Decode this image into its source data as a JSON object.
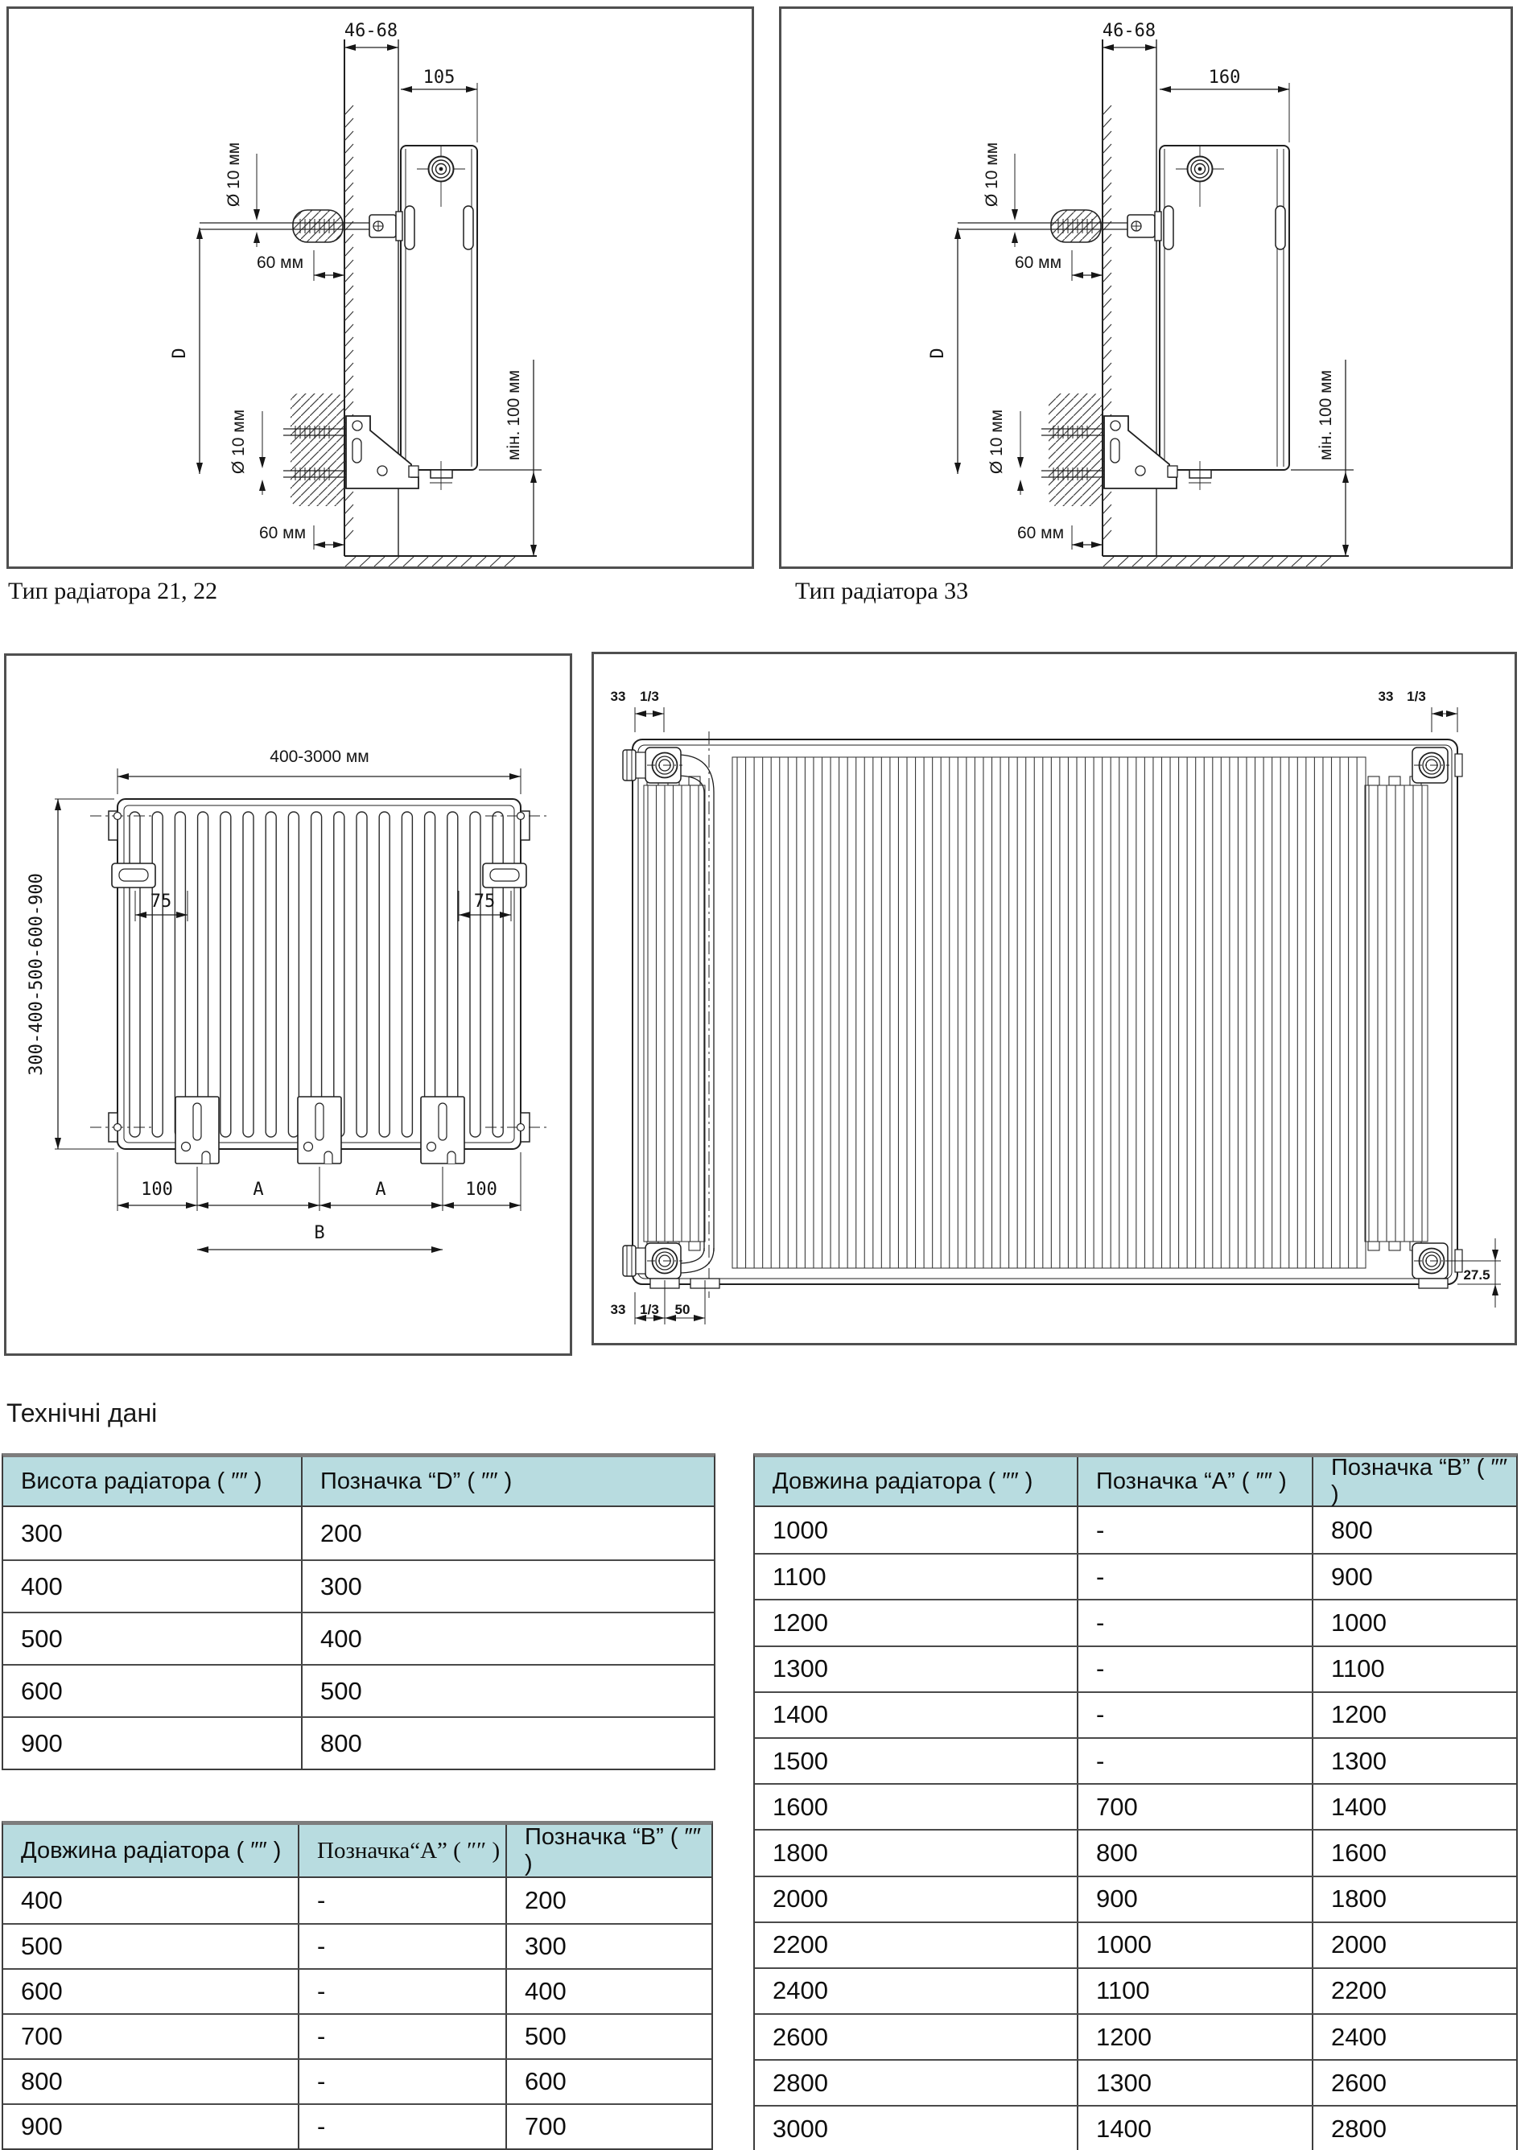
{
  "page": {
    "heading": "Технічні дані"
  },
  "diagrams": {
    "type2122": {
      "caption": "Тип радіатора 21, 22",
      "wall_gap": "46-68",
      "depth": "105",
      "hole_dia": "Ø 10 мм",
      "offset60": "60 мм",
      "height_ref": "D",
      "floor_min": "мін. 100 мм"
    },
    "type33": {
      "caption": "Тип радіатора 33",
      "wall_gap": "46-68",
      "depth": "160",
      "hole_dia": "Ø 10 мм",
      "offset60": "60 мм",
      "height_ref": "D",
      "floor_min": "мін. 100 мм"
    },
    "front": {
      "length_range": "400-3000 мм",
      "height_range": "300-400-500-600-900",
      "bracket_offset": "75",
      "edge_offset": "100",
      "dim_a": "A",
      "dim_b": "B"
    },
    "rear": {
      "corner_dim": "33",
      "thread": "1/3",
      "pipe_offset": "50",
      "bottom_offset": "27.5"
    }
  },
  "tables": {
    "height_d": {
      "headers": [
        "Висота радіатора ( ″″ )",
        "Позначка “D” ( ″″ )"
      ],
      "rows": [
        [
          "300",
          "200"
        ],
        [
          "400",
          "300"
        ],
        [
          "500",
          "400"
        ],
        [
          "600",
          "500"
        ],
        [
          "900",
          "800"
        ]
      ]
    },
    "length_ab_small": {
      "headers": [
        "Довжина радіатора ( ″″ )",
        "Позначка“А” ( ″″ )",
        "Позначка “В” ( ″″ )"
      ],
      "rows": [
        [
          "400",
          "-",
          "200"
        ],
        [
          "500",
          "-",
          "300"
        ],
        [
          "600",
          "-",
          "400"
        ],
        [
          "700",
          "-",
          "500"
        ],
        [
          "800",
          "-",
          "600"
        ],
        [
          "900",
          "-",
          "700"
        ]
      ]
    },
    "length_ab_large": {
      "headers": [
        "Довжина радіатора ( ″″ )",
        "Позначка “А” ( ″″ )",
        "Позначка “В” ( ″″ )"
      ],
      "rows": [
        [
          "1000",
          "-",
          "800"
        ],
        [
          "1100",
          "-",
          "900"
        ],
        [
          "1200",
          "-",
          "1000"
        ],
        [
          "1300",
          "-",
          "1100"
        ],
        [
          "1400",
          "-",
          "1200"
        ],
        [
          "1500",
          "-",
          "1300"
        ],
        [
          "1600",
          "700",
          "1400"
        ],
        [
          "1800",
          "800",
          "1600"
        ],
        [
          "2000",
          "900",
          "1800"
        ],
        [
          "2200",
          "1000",
          "2000"
        ],
        [
          "2400",
          "1100",
          "2200"
        ],
        [
          "2600",
          "1200",
          "2400"
        ],
        [
          "2800",
          "1300",
          "2600"
        ],
        [
          "3000",
          "1400",
          "2800"
        ]
      ]
    }
  }
}
